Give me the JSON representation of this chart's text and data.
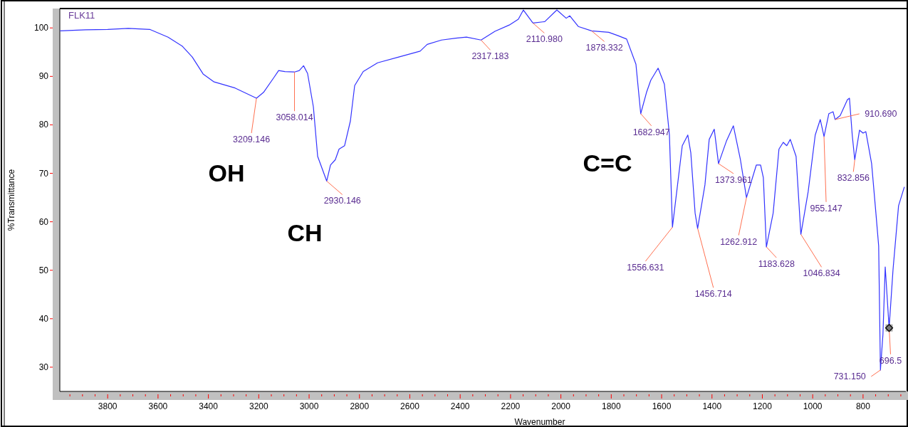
{
  "chart_data": {
    "type": "line",
    "title": "FLK11",
    "xlabel": "Wavenumber",
    "ylabel": "%Transmittance",
    "xlim": [
      3990,
      630
    ],
    "ylim": [
      25,
      104
    ],
    "xticks": [
      {
        "value": 3950,
        "label": null
      },
      {
        "value": 3900,
        "label": null
      },
      {
        "value": 3850,
        "label": null
      },
      3800,
      {
        "value": 3750,
        "label": null
      },
      {
        "value": 3700,
        "label": null
      },
      {
        "value": 3650,
        "label": null
      },
      3600,
      {
        "value": 3550,
        "label": null
      },
      {
        "value": 3500,
        "label": null
      },
      {
        "value": 3450,
        "label": null
      },
      3400,
      {
        "value": 3350,
        "label": null
      },
      {
        "value": 3300,
        "label": null
      },
      {
        "value": 3250,
        "label": null
      },
      3200,
      {
        "value": 3150,
        "label": null
      },
      {
        "value": 3100,
        "label": null
      },
      {
        "value": 3050,
        "label": null
      },
      3000,
      {
        "value": 2950,
        "label": null
      },
      {
        "value": 2900,
        "label": null
      },
      {
        "value": 2850,
        "label": null
      },
      2800,
      {
        "value": 2750,
        "label": null
      },
      {
        "value": 2700,
        "label": null
      },
      {
        "value": 2650,
        "label": null
      },
      2600,
      {
        "value": 2550,
        "label": null
      },
      {
        "value": 2500,
        "label": null
      },
      {
        "value": 2450,
        "label": null
      },
      2400,
      {
        "value": 2350,
        "label": null
      },
      {
        "value": 2300,
        "label": null
      },
      {
        "value": 2250,
        "label": null
      },
      2200,
      {
        "value": 2150,
        "label": null
      },
      {
        "value": 2100,
        "label": null
      },
      {
        "value": 2050,
        "label": null
      },
      2000,
      {
        "value": 1950,
        "label": null
      },
      {
        "value": 1900,
        "label": null
      },
      {
        "value": 1850,
        "label": null
      },
      1800,
      {
        "value": 1750,
        "label": null
      },
      {
        "value": 1700,
        "label": null
      },
      {
        "value": 1650,
        "label": null
      },
      1600,
      {
        "value": 1550,
        "label": null
      },
      {
        "value": 1500,
        "label": null
      },
      {
        "value": 1450,
        "label": null
      },
      1400,
      {
        "value": 1350,
        "label": null
      },
      {
        "value": 1300,
        "label": null
      },
      {
        "value": 1250,
        "label": null
      },
      1200,
      {
        "value": 1150,
        "label": null
      },
      {
        "value": 1100,
        "label": null
      },
      {
        "value": 1050,
        "label": null
      },
      1000,
      {
        "value": 950,
        "label": null
      },
      {
        "value": 900,
        "label": null
      },
      {
        "value": 850,
        "label": null
      },
      800,
      {
        "value": 750,
        "label": null
      },
      {
        "value": 700,
        "label": null
      },
      {
        "value": 650,
        "label": null
      }
    ],
    "yticks": [
      30,
      40,
      50,
      60,
      70,
      80,
      90,
      100
    ],
    "grid": false,
    "marker": "none",
    "line_style": "solid",
    "series": [
      {
        "color": "#3333ff",
        "x": [
          3989,
          3888,
          3800,
          3718,
          3633,
          3560,
          3503,
          3464,
          3421,
          3379,
          3294,
          3209,
          3181,
          3138,
          3121,
          3096,
          3058,
          3039,
          3022,
          3006,
          2983,
          2966,
          2930,
          2915,
          2896,
          2881,
          2859,
          2836,
          2819,
          2785,
          2728,
          2644,
          2559,
          2531,
          2474,
          2417,
          2375,
          2317,
          2262,
          2205,
          2169,
          2149,
          2111,
          2064,
          2016,
          1979,
          1965,
          1931,
          1878,
          1810,
          1773,
          1739,
          1702,
          1683,
          1660,
          1643,
          1614,
          1589,
          1569,
          1557,
          1518,
          1496,
          1484,
          1467,
          1457,
          1428,
          1411,
          1391,
          1374,
          1343,
          1315,
          1287,
          1263,
          1224,
          1207,
          1196,
          1184,
          1157,
          1134,
          1117,
          1103,
          1089,
          1066,
          1047,
          1018,
          990,
          970,
          955,
          936,
          919,
          911,
          891,
          862,
          854,
          843,
          833,
          814,
          800,
          789,
          766,
          749,
          738,
          731,
          721,
          712,
          696.5,
          681,
          659,
          636
        ],
        "values": [
          99.4,
          99.6,
          99.7,
          99.9,
          99.7,
          98.1,
          96.2,
          94.0,
          90.5,
          88.9,
          87.6,
          85.5,
          86.7,
          89.9,
          91.2,
          91.0,
          90.9,
          91.2,
          92.2,
          90.6,
          83.7,
          73.5,
          68.4,
          71.7,
          72.8,
          75.0,
          75.7,
          80.8,
          88.1,
          91.0,
          92.8,
          94.0,
          95.2,
          96.6,
          97.5,
          97.9,
          98.1,
          97.5,
          99.3,
          100.6,
          101.8,
          103.7,
          101.0,
          101.3,
          103.7,
          102.0,
          102.5,
          100.3,
          99.4,
          99.1,
          98.4,
          97.7,
          92.5,
          82.3,
          86.7,
          89.2,
          91.7,
          88.4,
          77.9,
          58.9,
          75.7,
          77.9,
          74.2,
          61.8,
          58.6,
          67.6,
          77.0,
          79.1,
          72.0,
          76.6,
          79.8,
          72.8,
          65.0,
          71.7,
          71.7,
          69.1,
          54.8,
          61.8,
          75.0,
          76.4,
          75.7,
          77.0,
          73.5,
          57.4,
          66.2,
          77.9,
          81.1,
          77.6,
          82.3,
          82.7,
          81.1,
          81.9,
          85.2,
          85.5,
          77.9,
          72.8,
          78.9,
          78.3,
          78.6,
          72.0,
          61.8,
          55.0,
          29.4,
          36.8,
          50.7,
          38.1,
          50.1,
          63.3,
          67.2
        ]
      }
    ],
    "annotations": [
      {
        "text": "3209.146",
        "x": 3209.146,
        "y": 85.5
      },
      {
        "text": "3058.014",
        "x": 3058.014,
        "y": 90.9
      },
      {
        "text": "2930.146",
        "x": 2930.146,
        "y": 68.4
      },
      {
        "text": "2317.183",
        "x": 2317.183,
        "y": 97.5
      },
      {
        "text": "2110.980",
        "x": 2110.98,
        "y": 101.0
      },
      {
        "text": "1878.332",
        "x": 1878.332,
        "y": 99.4
      },
      {
        "text": "1682.947",
        "x": 1682.947,
        "y": 82.3
      },
      {
        "text": "1556.631",
        "x": 1556.631,
        "y": 58.9
      },
      {
        "text": "1456.714",
        "x": 1456.714,
        "y": 58.6
      },
      {
        "text": "1373.961",
        "x": 1373.961,
        "y": 72.0
      },
      {
        "text": "1262.912",
        "x": 1262.912,
        "y": 65.0
      },
      {
        "text": "1183.628",
        "x": 1183.628,
        "y": 54.8
      },
      {
        "text": "1046.834",
        "x": 1046.834,
        "y": 57.4
      },
      {
        "text": "955.147",
        "x": 955.147,
        "y": 77.6
      },
      {
        "text": "910.690",
        "x": 910.69,
        "y": 81.1
      },
      {
        "text": "832.856",
        "x": 832.856,
        "y": 72.8
      },
      {
        "text": "731.150",
        "x": 731.15,
        "y": 29.4
      },
      {
        "text": "696.5",
        "x": 696.5,
        "y": 38.1
      },
      "OH",
      "CH",
      "C=C"
    ]
  }
}
